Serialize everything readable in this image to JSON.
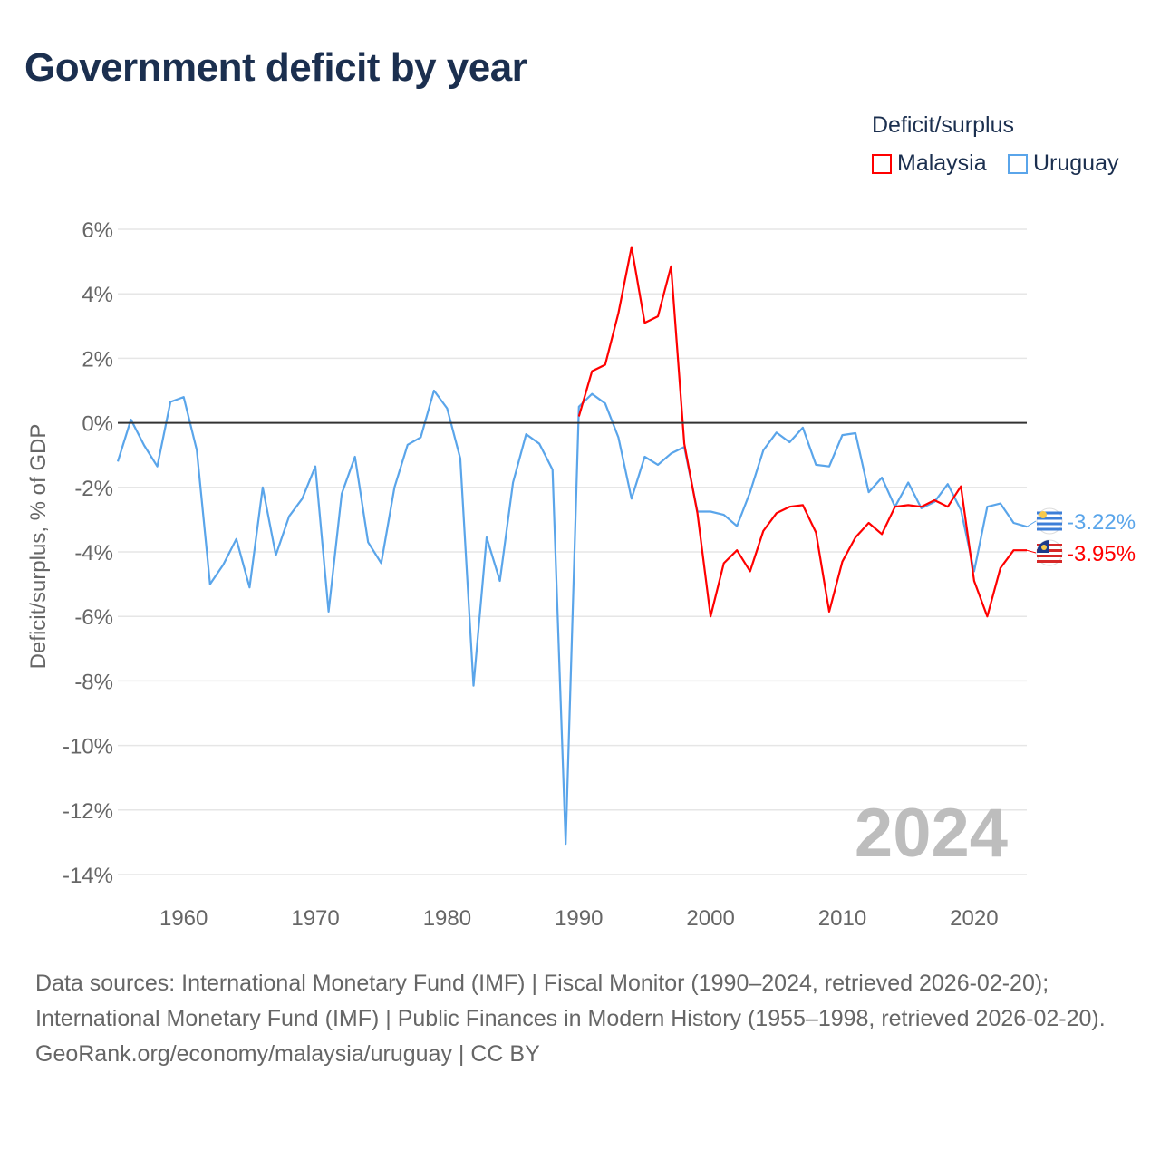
{
  "title": "Government deficit by year",
  "legend": {
    "title": "Deficit/surplus",
    "items": [
      "Malaysia",
      "Uruguay"
    ]
  },
  "colors": {
    "Malaysia": "#ff0000",
    "Uruguay": "#5aa5ea"
  },
  "footer": {
    "sources": "Data sources: International Monetary Fund (IMF) | Fiscal Monitor (1990–2024, retrieved 2026-02-20); International Monetary Fund (IMF) | Public Finances in Modern History (1955–1998, retrieved 2026-02-20).",
    "credit": "GeoRank.org/economy/malaysia/uruguay | CC BY"
  },
  "chart_data": {
    "type": "line",
    "title": "Government deficit by year",
    "xlabel": "",
    "ylabel": "Deficit/surplus, % of GDP",
    "xlim": [
      1955,
      2024
    ],
    "ylim": [
      -14,
      6
    ],
    "yticks": [
      6,
      4,
      2,
      0,
      -2,
      -4,
      -6,
      -8,
      -10,
      -12,
      -14
    ],
    "ytick_labels": [
      "6%",
      "4%",
      "2%",
      "0%",
      "-2%",
      "-4%",
      "-6%",
      "-8%",
      "-10%",
      "-12%",
      "-14%"
    ],
    "xticks": [
      1960,
      1970,
      1980,
      1990,
      2000,
      2010,
      2020
    ],
    "xtick_labels": [
      "1960",
      "1970",
      "1980",
      "1990",
      "2000",
      "2010",
      "2020"
    ],
    "year_watermark": "2024",
    "grid": true,
    "legend_position": "top-right",
    "series": [
      {
        "name": "Uruguay",
        "start_year": 1955,
        "end_label": "-3.22%",
        "values": [
          -1.2,
          0.1,
          -0.7,
          -1.35,
          0.65,
          0.8,
          -0.85,
          -5.0,
          -4.4,
          -3.6,
          -5.1,
          -2.0,
          -4.1,
          -2.9,
          -2.35,
          -1.35,
          -5.85,
          -2.2,
          -1.05,
          -3.7,
          -4.35,
          -2.0,
          -0.68,
          -0.45,
          1.0,
          0.45,
          -1.1,
          -8.15,
          -3.55,
          -4.9,
          -1.85,
          -0.35,
          -0.65,
          -1.45,
          -13.05,
          0.5,
          0.9,
          0.6,
          -0.45,
          -2.35,
          -1.05,
          -1.3,
          -0.95,
          -0.75,
          -2.75,
          -2.75,
          -2.85,
          -3.2,
          -2.15,
          -0.85,
          -0.3,
          -0.6,
          -0.15,
          -1.3,
          -1.35,
          -0.38,
          -0.32,
          -2.15,
          -1.7,
          -2.6,
          -1.85,
          -2.65,
          -2.45,
          -1.9,
          -2.7,
          -4.6,
          -2.6,
          -2.5,
          -3.1,
          -3.22
        ]
      },
      {
        "name": "Malaysia",
        "start_year": 1990,
        "end_label": "-3.95%",
        "values": [
          0.2,
          1.6,
          1.8,
          3.4,
          5.45,
          3.1,
          3.3,
          4.85,
          -0.65,
          -2.8,
          -6.0,
          -4.35,
          -3.95,
          -4.6,
          -3.35,
          -2.8,
          -2.6,
          -2.55,
          -3.4,
          -5.85,
          -4.3,
          -3.55,
          -3.1,
          -3.45,
          -2.6,
          -2.55,
          -2.6,
          -2.4,
          -2.6,
          -1.97,
          -4.9,
          -6.0,
          -4.5,
          -3.95,
          -3.95
        ]
      }
    ]
  }
}
